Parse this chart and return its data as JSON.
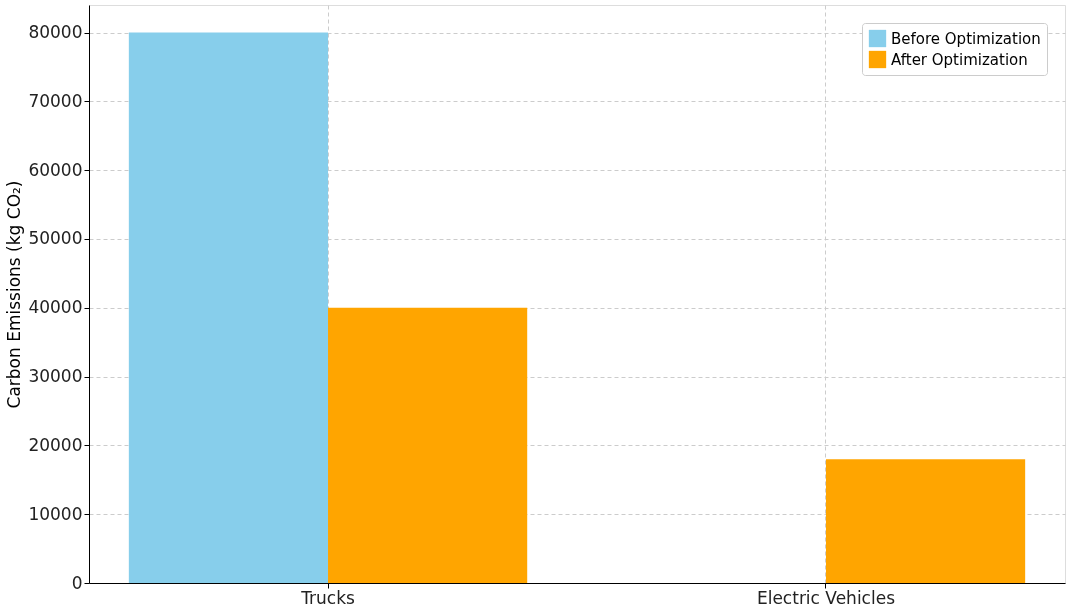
{
  "chart_data": {
    "type": "bar",
    "categories": [
      "Trucks",
      "Electric Vehicles"
    ],
    "ylabel": "Carbon Emissions (kg CO₂)",
    "series": [
      {
        "name": "Before Optimization",
        "color": "#87ceeb",
        "values": [
          80000,
          0
        ]
      },
      {
        "name": "After Optimization",
        "color": "#ffa500",
        "values": [
          40000,
          18000
        ]
      }
    ],
    "ylim": [
      0,
      84000
    ],
    "yticks": [
      0,
      10000,
      20000,
      30000,
      40000,
      50000,
      60000,
      70000,
      80000
    ],
    "grid": true,
    "legend": "top right"
  }
}
